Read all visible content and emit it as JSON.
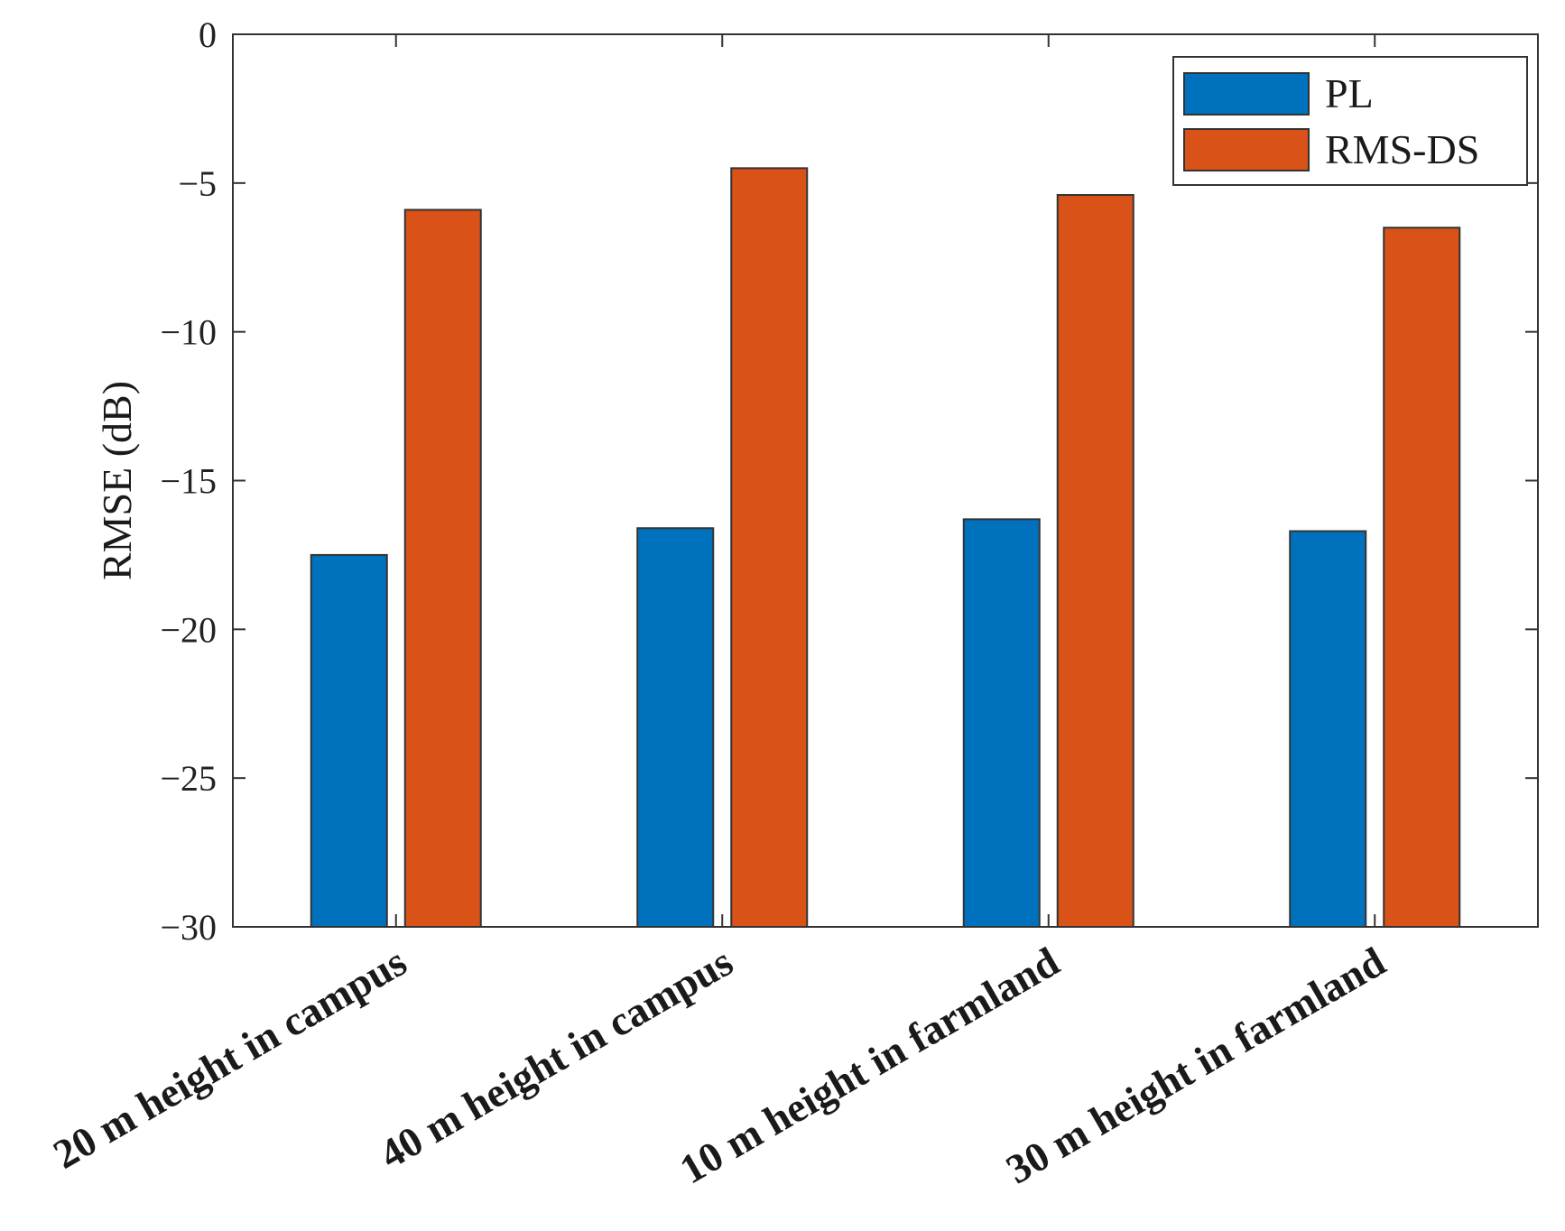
{
  "chart_data": {
    "type": "bar",
    "title": "",
    "xlabel": "",
    "ylabel": "RMSE (dB)",
    "ylim": [
      -30,
      0
    ],
    "yticks": [
      0,
      -5,
      -10,
      -15,
      -20,
      -25,
      -30
    ],
    "baseline": -30,
    "grid": false,
    "legend_position": "top-right",
    "categories": [
      "20 m height in campus",
      "40 m height in campus",
      "10 m height in farmland",
      "30 m height in farmland"
    ],
    "series": [
      {
        "name": "PL",
        "color": "#0072BD",
        "values": [
          -17.5,
          -16.6,
          -16.3,
          -16.7
        ]
      },
      {
        "name": "RMS-DS",
        "color": "#D95319",
        "values": [
          -5.9,
          -4.5,
          -5.4,
          -6.5
        ]
      }
    ]
  }
}
